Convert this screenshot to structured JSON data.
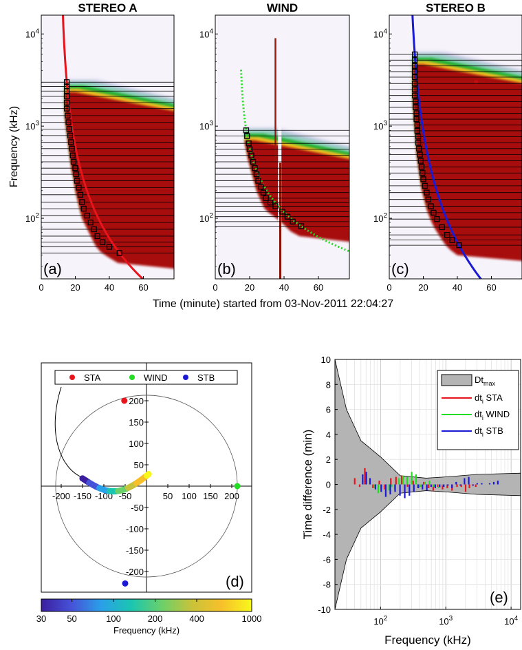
{
  "figure": {
    "shared_xlabel": "Time (minute) started from 03-Nov-2011 22:04:27",
    "shared_ylabel": "Frequency (kHz)"
  },
  "chart_data": [
    {
      "type": "heatmap",
      "id": "a",
      "title": "STEREO A",
      "panel_label": "(a)",
      "x_ticks": [
        "0",
        "20",
        "40",
        "60"
      ],
      "xlim": [
        0,
        78
      ],
      "y_ticks": [
        "10^2",
        "10^3",
        "10^4"
      ],
      "ylim": [
        22,
        16000
      ],
      "yscale": "log",
      "fit_curve_color": "#e8141b",
      "fit_curve_style": "solid",
      "markers": [
        [
          15,
          3000
        ],
        [
          15,
          2700
        ],
        [
          15,
          2400
        ],
        [
          15,
          2100
        ],
        [
          15,
          1800
        ],
        [
          15,
          1550
        ],
        [
          15.5,
          1300
        ],
        [
          16,
          1100
        ],
        [
          16.5,
          930
        ],
        [
          17,
          790
        ],
        [
          17.5,
          670
        ],
        [
          18,
          570
        ],
        [
          18.5,
          480
        ],
        [
          19,
          410
        ],
        [
          20,
          350
        ],
        [
          20.5,
          300
        ],
        [
          21,
          255
        ],
        [
          22,
          215
        ],
        [
          23,
          180
        ],
        [
          24,
          150
        ],
        [
          25,
          127
        ],
        [
          27,
          107
        ],
        [
          29,
          90
        ],
        [
          31,
          76
        ],
        [
          33,
          64
        ],
        [
          36,
          55
        ],
        [
          40,
          49
        ],
        [
          46,
          42
        ]
      ]
    },
    {
      "type": "heatmap",
      "id": "b",
      "title": "WIND",
      "panel_label": "(b)",
      "x_ticks": [
        "0",
        "20",
        "40",
        "60"
      ],
      "xlim": [
        0,
        78
      ],
      "y_ticks": [
        "10^2",
        "10^3",
        "10^4"
      ],
      "ylim": [
        22,
        16000
      ],
      "yscale": "log",
      "fit_curve_color": "#22dd22",
      "fit_curve_style": "dotted",
      "markers": [
        [
          18,
          900
        ],
        [
          18.5,
          780
        ],
        [
          19.5,
          650
        ],
        [
          20,
          560
        ],
        [
          21,
          480
        ],
        [
          22,
          410
        ],
        [
          23,
          350
        ],
        [
          24,
          300
        ],
        [
          25,
          255
        ],
        [
          26.5,
          220
        ],
        [
          28,
          190
        ],
        [
          29.5,
          165
        ],
        [
          32,
          148
        ],
        [
          35,
          135
        ],
        [
          39,
          118
        ],
        [
          42,
          104
        ],
        [
          45,
          92
        ],
        [
          50,
          82
        ]
      ]
    },
    {
      "type": "heatmap",
      "id": "c",
      "title": "STEREO B",
      "panel_label": "(c)",
      "x_ticks": [
        "0",
        "20",
        "40",
        "60"
      ],
      "xlim": [
        0,
        78
      ],
      "y_ticks": [
        "10^2",
        "10^3",
        "10^4"
      ],
      "ylim": [
        22,
        16000
      ],
      "yscale": "log",
      "fit_curve_color": "#1a1ad6",
      "fit_curve_style": "solid",
      "markers": [
        [
          15,
          6000
        ],
        [
          15,
          5200
        ],
        [
          15,
          4500
        ],
        [
          15,
          3900
        ],
        [
          15,
          3400
        ],
        [
          15,
          2900
        ],
        [
          15,
          2500
        ],
        [
          15,
          2150
        ],
        [
          15.5,
          1850
        ],
        [
          15.5,
          1600
        ],
        [
          16,
          1380
        ],
        [
          16,
          1190
        ],
        [
          16.5,
          1030
        ],
        [
          16.5,
          890
        ],
        [
          17,
          770
        ],
        [
          17,
          660
        ],
        [
          17.5,
          570
        ],
        [
          18,
          490
        ],
        [
          18.5,
          420
        ],
        [
          19,
          360
        ],
        [
          19.5,
          310
        ],
        [
          20,
          265
        ],
        [
          21,
          225
        ],
        [
          22,
          190
        ],
        [
          23,
          160
        ],
        [
          24.5,
          135
        ],
        [
          26,
          115
        ],
        [
          28,
          98
        ],
        [
          31,
          80
        ],
        [
          34,
          66
        ],
        [
          37,
          58
        ],
        [
          41,
          51
        ]
      ]
    },
    {
      "type": "scatter",
      "id": "d",
      "panel_label": "(d)",
      "x_ticks": [
        "-200",
        "-150",
        "-100",
        "-50",
        "50",
        "100",
        "150",
        "200"
      ],
      "y_ticks": [
        "200",
        "150",
        "100",
        "50",
        "-50",
        "-100",
        "-150",
        "-200"
      ],
      "xlim": [
        -235,
        235
      ],
      "ylim": [
        -235,
        235
      ],
      "legend": {
        "position": "top",
        "entries": [
          "STA",
          "WIND",
          "STB"
        ]
      },
      "spacecraft": [
        {
          "name": "STA",
          "x": -52,
          "y": 200,
          "color": "#e8141b"
        },
        {
          "name": "WIND",
          "x": 213,
          "y": 0,
          "color": "#22dd22"
        },
        {
          "name": "STB",
          "x": -50,
          "y": -228,
          "color": "#1a1ad6"
        }
      ],
      "circle_radius": 213,
      "colorbar": {
        "label": "Frequency (kHz)",
        "ticks": [
          "30",
          "50",
          "100",
          "200",
          "400",
          "1000"
        ],
        "range": [
          30,
          1000
        ],
        "scale": "log",
        "colors": [
          "#3b1fa0",
          "#4652d8",
          "#2aa0e8",
          "#1ac6b0",
          "#6ad06a",
          "#c8c33a",
          "#f7c02a",
          "#f8f81c"
        ]
      }
    },
    {
      "type": "bar",
      "id": "e",
      "panel_label": "(e)",
      "xlabel": "Frequency (kHz)",
      "ylabel": "Time difference (min)",
      "xscale": "log",
      "xlim": [
        20,
        14000
      ],
      "ylim": [
        -10,
        10
      ],
      "x_ticks": [
        "10^2",
        "10^3",
        "10^4"
      ],
      "y_ticks": [
        "10",
        "8",
        "6",
        "4",
        "2",
        "0",
        "-2",
        "-4",
        "-6",
        "-8",
        "-10"
      ],
      "legend": {
        "position": "top-right",
        "entries": [
          "Dt_max",
          "dt_i STA",
          "dt_i WIND",
          "dt_i STB"
        ]
      },
      "envelope_color": "#b4b4b4",
      "envelope": [
        [
          20,
          10
        ],
        [
          30,
          6
        ],
        [
          50,
          3.5
        ],
        [
          100,
          2.2
        ],
        [
          200,
          0.7
        ],
        [
          500,
          0.5
        ],
        [
          1000,
          0.6
        ],
        [
          3000,
          0.8
        ],
        [
          14000,
          0.9
        ]
      ],
      "series": [
        {
          "name": "dt_i STA",
          "color": "#e8141b",
          "x": [
            42,
            50,
            60,
            80,
            100,
            120,
            150,
            180,
            220,
            270,
            330,
            400,
            480,
            570,
            670,
            790,
            930,
            1100,
            1300,
            1550,
            1800,
            2100,
            2400,
            2700,
            3000
          ],
          "values": [
            0.5,
            -0.2,
            1.3,
            -0.3,
            0.3,
            -0.4,
            0.5,
            0.6,
            0.7,
            -0.2,
            0.3,
            -0.3,
            0.2,
            -0.3,
            -0.5,
            -0.2,
            -0.4,
            -0.3,
            -0.5,
            -0.2,
            -0.2,
            -0.6,
            -0.3,
            -0.1,
            -0.2
          ]
        },
        {
          "name": "dt_i WIND",
          "color": "#22dd22",
          "x": [
            82,
            92,
            104,
            118,
            135,
            148,
            165,
            190,
            220,
            255,
            300,
            350,
            410,
            480,
            560,
            650,
            780,
            900
          ],
          "values": [
            -0.3,
            -0.7,
            -0.3,
            -0.4,
            -0.5,
            -0.2,
            -0.4,
            0.5,
            0.7,
            0.6,
            1.0,
            0.8,
            -0.2,
            0.2,
            0.3,
            -0.2,
            -0.3,
            -0.1
          ]
        },
        {
          "name": "dt_i STB",
          "color": "#1a1ad6",
          "x": [
            51,
            58,
            66,
            80,
            98,
            115,
            135,
            160,
            190,
            225,
            265,
            310,
            360,
            420,
            490,
            570,
            660,
            770,
            890,
            1030,
            1190,
            1380,
            1600,
            1850,
            2150,
            2500,
            2900,
            3400,
            3900,
            4500,
            5200,
            6000
          ],
          "values": [
            0.8,
            1.0,
            0.5,
            -0.4,
            -0.6,
            -1.0,
            -0.8,
            -0.6,
            -0.9,
            -1.1,
            -0.9,
            -0.6,
            -0.3,
            -0.4,
            -0.5,
            -0.2,
            -0.3,
            -0.2,
            -0.2,
            -0.1,
            -0.3,
            0.2,
            -0.1,
            0.5,
            0.6,
            -0.1,
            0.1,
            0.1,
            0.0,
            0.1,
            0.2,
            0.3
          ]
        }
      ]
    }
  ]
}
